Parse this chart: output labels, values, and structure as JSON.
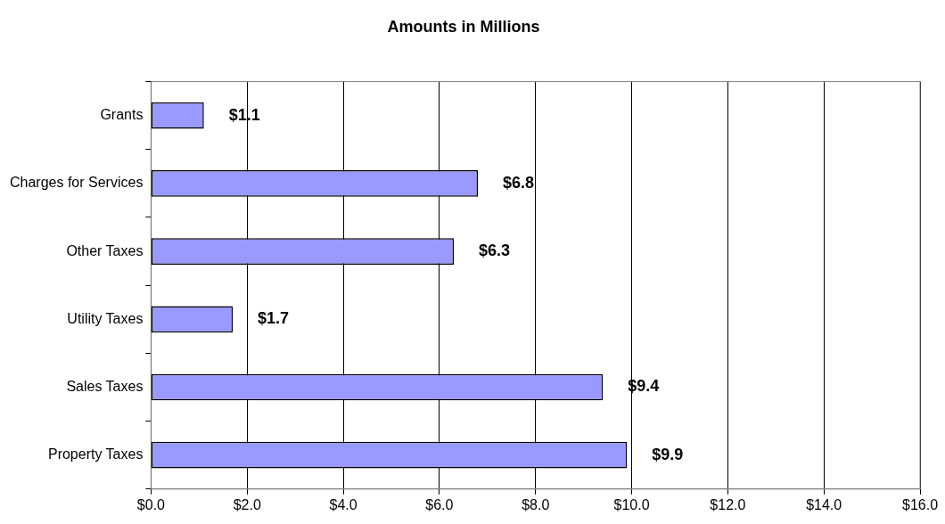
{
  "chart_data": {
    "type": "bar",
    "orientation": "horizontal",
    "title": "Amounts in Millions",
    "categories": [
      "Grants",
      "Charges for Services",
      "Other Taxes",
      "Utility Taxes",
      "Sales Taxes",
      "Property Taxes"
    ],
    "values": [
      1.1,
      6.8,
      6.3,
      1.7,
      9.4,
      9.9
    ],
    "value_labels": [
      "$1.1",
      "$6.8",
      "$6.3",
      "$1.7",
      "$9.4",
      "$9.9"
    ],
    "color": "#9999ff",
    "xlim": [
      0,
      16
    ],
    "xticks": [
      {
        "value": 0,
        "label": "$0.0"
      },
      {
        "value": 2,
        "label": "$2.0"
      },
      {
        "value": 4,
        "label": "$4.0"
      },
      {
        "value": 6,
        "label": "$6.0"
      },
      {
        "value": 8,
        "label": "$8.0"
      },
      {
        "value": 10,
        "label": "$10.0"
      },
      {
        "value": 12,
        "label": "$12.0"
      },
      {
        "value": 14,
        "label": "$14.0"
      },
      {
        "value": 16,
        "label": "$16.0"
      }
    ],
    "grid": "x",
    "legend": false
  }
}
